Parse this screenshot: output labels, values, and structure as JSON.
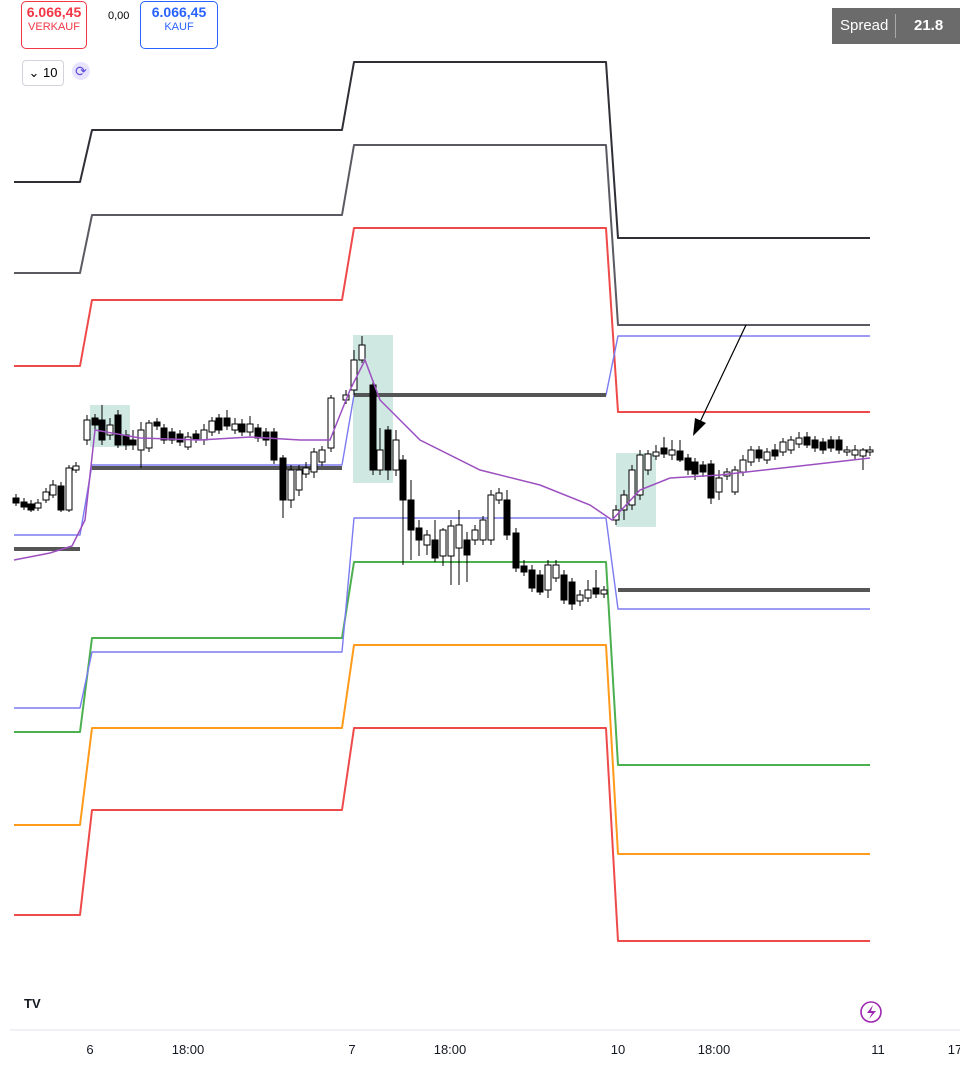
{
  "toolbar": {
    "sell_price": "6.066,45",
    "sell_label": "VERKAUF",
    "spread_value": "0,00",
    "buy_price": "6.066,45",
    "buy_label": "KAUF",
    "interval": "10"
  },
  "spread_panel": {
    "label": "Spread",
    "value": "21.8"
  },
  "time_axis": {
    "labels": [
      "6",
      "18:00",
      "7",
      "18:00",
      "10",
      "18:00",
      "11",
      "17"
    ]
  }
}
